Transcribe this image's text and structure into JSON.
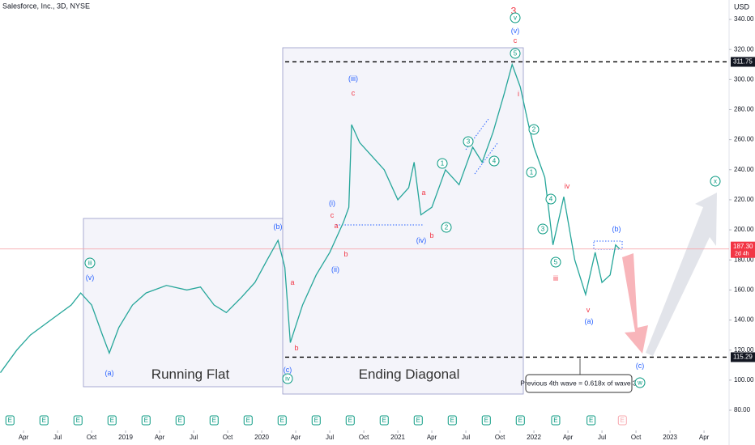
{
  "chart_data": {
    "type": "line",
    "title": "Salesforce, Inc., 3D, NYSE",
    "currency": "USD",
    "color": "#26a69a",
    "x": [
      2018.08,
      2018.2,
      2018.3,
      2018.45,
      2018.6,
      2018.67,
      2018.75,
      2018.83,
      2018.88,
      2018.95,
      2019.05,
      2019.15,
      2019.3,
      2019.45,
      2019.55,
      2019.65,
      2019.74,
      2019.85,
      2019.95,
      2020.04,
      2020.12,
      2020.17,
      2020.21,
      2020.3,
      2020.4,
      2020.5,
      2020.55,
      2020.6,
      2020.64,
      2020.66,
      2020.72,
      2020.8,
      2020.9,
      2021.0,
      2021.08,
      2021.12,
      2021.17,
      2021.25,
      2021.35,
      2021.45,
      2021.55,
      2021.62,
      2021.7,
      2021.78,
      2021.84,
      2021.9,
      2021.96,
      2022.0,
      2022.08,
      2022.14,
      2022.19,
      2022.22,
      2022.3,
      2022.38,
      2022.45,
      2022.5,
      2022.56,
      2022.6,
      2022.63
    ],
    "values": [
      105,
      120,
      130,
      140,
      150,
      158,
      150,
      130,
      118,
      135,
      150,
      158,
      163,
      160,
      162,
      150,
      145,
      155,
      165,
      180,
      193,
      175,
      125,
      150,
      170,
      185,
      195,
      205,
      215,
      270,
      258,
      250,
      240,
      220,
      228,
      245,
      210,
      215,
      240,
      230,
      255,
      245,
      265,
      290,
      310,
      295,
      270,
      255,
      235,
      190,
      210,
      222,
      180,
      157,
      185,
      165,
      170,
      190,
      187.3
    ],
    "xlim": [
      2018.077,
      2023.434
    ],
    "xticks": [
      {
        "value": 2018.25,
        "label": "Apr"
      },
      {
        "value": 2018.5,
        "label": "Jul"
      },
      {
        "value": 2018.75,
        "label": "Oct"
      },
      2019,
      {
        "value": 2019.25,
        "label": "Apr"
      },
      {
        "value": 2019.5,
        "label": "Jul"
      },
      {
        "value": 2019.75,
        "label": "Oct"
      },
      2020,
      {
        "value": 2020.25,
        "label": "Apr"
      },
      {
        "value": 2020.5,
        "label": "Jul"
      },
      {
        "value": 2020.75,
        "label": "Oct"
      },
      2021,
      {
        "value": 2021.25,
        "label": "Apr"
      },
      {
        "value": 2021.5,
        "label": "Jul"
      },
      {
        "value": 2021.75,
        "label": "Oct"
      },
      2022,
      {
        "value": 2022.25,
        "label": "Apr"
      },
      {
        "value": 2022.5,
        "label": "Jul"
      },
      {
        "value": 2022.75,
        "label": "Oct"
      },
      2023,
      {
        "value": 2023.25,
        "label": "Apr"
      }
    ],
    "ylim": [
      80,
      340
    ],
    "yticks": [
      {
        "value": 80,
        "label": "80.00"
      },
      {
        "value": 100,
        "label": "100.00"
      },
      {
        "value": 120,
        "label": "120.00"
      },
      {
        "value": 140,
        "label": "140.00"
      },
      {
        "value": 160,
        "label": "160.00"
      },
      {
        "value": 180,
        "label": "180.00"
      },
      {
        "value": 200,
        "label": "200.00"
      },
      {
        "value": 220,
        "label": "220.00"
      },
      {
        "value": 240,
        "label": "240.00"
      },
      {
        "value": 260,
        "label": "260.00"
      },
      {
        "value": 280,
        "label": "280.00"
      },
      {
        "value": 300,
        "label": "300.00"
      },
      {
        "value": 320,
        "label": "320.00"
      },
      {
        "value": 340,
        "label": "340.00"
      }
    ],
    "levels": [
      311.75,
      115.29
    ],
    "last_price": {
      "value": 187.3,
      "label": "187.30",
      "countdown": "2d 4h"
    },
    "earnings": {
      "label": "E",
      "x": [
        2018.15,
        2018.4,
        2018.65,
        2018.9,
        2019.15,
        2019.4,
        2019.65,
        2019.9,
        2020.15,
        2020.4,
        2020.65,
        2020.9,
        2021.15,
        2021.4,
        2021.65,
        2021.9,
        2022.16,
        2022.42,
        2022.65
      ]
    },
    "callout": "Previous 4th wave = 0.618x of wave 3",
    "annotations": [
      {
        "text": "3",
        "color": "#f23645"
      },
      {
        "text": "v",
        "color": "#089981",
        "circled": true
      },
      {
        "text": "(v)",
        "color": "#2962ff"
      },
      {
        "text": "c",
        "color": "#f23645"
      },
      {
        "text": "5",
        "color": "#089981",
        "circled": true
      },
      {
        "text": "i",
        "color": "#f23645"
      },
      {
        "text": "(iii)",
        "color": "#2962ff"
      },
      {
        "text": "c",
        "color": "#f23645"
      },
      {
        "text": "(i)",
        "color": "#2962ff"
      },
      {
        "text": "c",
        "color": "#f23645"
      },
      {
        "text": "a",
        "color": "#f23645"
      },
      {
        "text": "b",
        "color": "#f23645"
      },
      {
        "text": "(ii)",
        "color": "#2962ff"
      },
      {
        "text": "(b)",
        "color": "#2962ff"
      },
      {
        "text": "a",
        "color": "#f23645"
      },
      {
        "text": "b",
        "color": "#f23645"
      },
      {
        "text": "(c)",
        "color": "#2962ff"
      },
      {
        "text": "iv",
        "color": "#089981",
        "circled": true
      },
      {
        "text": "iii",
        "color": "#089981",
        "circled": true
      },
      {
        "text": "(v)",
        "color": "#2962ff"
      },
      {
        "text": "(a)",
        "color": "#2962ff"
      },
      {
        "text": "(iv)",
        "color": "#2962ff"
      },
      {
        "text": "b",
        "color": "#f23645"
      },
      {
        "text": "a",
        "color": "#f23645"
      },
      {
        "text": "1",
        "color": "#089981",
        "circled": true
      },
      {
        "text": "2",
        "color": "#089981",
        "circled": true
      },
      {
        "text": "3",
        "color": "#089981",
        "circled": true
      },
      {
        "text": "4",
        "color": "#089981",
        "circled": true
      },
      {
        "text": "2",
        "color": "#089981",
        "circled": true
      },
      {
        "text": "1",
        "color": "#089981",
        "circled": true
      },
      {
        "text": "4",
        "color": "#089981",
        "circled": true
      },
      {
        "text": "3",
        "color": "#089981",
        "circled": true
      },
      {
        "text": "5",
        "color": "#089981",
        "circled": true
      },
      {
        "text": "iii",
        "color": "#f23645"
      },
      {
        "text": "iv",
        "color": "#f23645"
      },
      {
        "text": "v",
        "color": "#f23645"
      },
      {
        "text": "(a)",
        "color": "#2962ff"
      },
      {
        "text": "(b)",
        "color": "#2962ff"
      },
      {
        "text": "(c)",
        "color": "#2962ff"
      },
      {
        "text": "w",
        "color": "#089981",
        "circled": true
      },
      {
        "text": "x",
        "color": "#089981",
        "circled": true
      },
      {
        "text": "Running Flat",
        "color": "#333333",
        "big": true
      },
      {
        "text": "Ending Diagonal",
        "color": "#333333",
        "big": true
      }
    ]
  }
}
